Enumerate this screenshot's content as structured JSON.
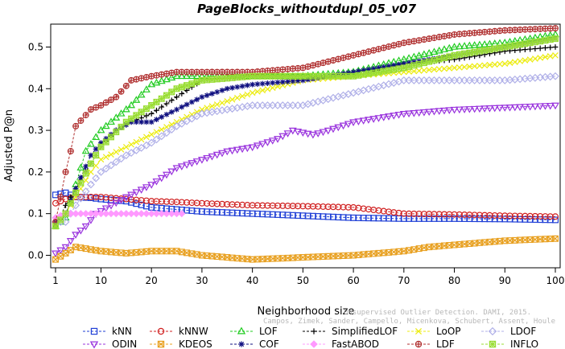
{
  "chart_data": {
    "type": "line",
    "title": "PageBlocks_withoutdupl_05_v07",
    "xlabel": "Neighborhood size",
    "ylabel": "Adjusted P@n",
    "xlim": [
      1,
      100
    ],
    "ylim": [
      -0.03,
      0.555
    ],
    "x_ticks": [
      1,
      10,
      20,
      30,
      40,
      50,
      60,
      70,
      80,
      90,
      100
    ],
    "y_ticks": [
      0.0,
      0.1,
      0.2,
      0.3,
      0.4,
      0.5
    ],
    "y_tick_labels": [
      "0.0",
      "0.1",
      "0.2",
      "0.3",
      "0.4",
      "0.5"
    ],
    "grid": false,
    "legend_position": "bottom",
    "watermark": [
      "Unsupervised Outlier Detection. DAMI, 2015.",
      "Campos, Zimek, Sander, Campello, Micenkova, Schubert, Assent, Houle"
    ],
    "series": [
      {
        "name": "kNN",
        "color": "#1f3fd6",
        "marker": "square",
        "points": [
          [
            1,
            0.145
          ],
          [
            3,
            0.15
          ],
          [
            5,
            0.14
          ],
          [
            8,
            0.138
          ],
          [
            10,
            0.135
          ],
          [
            15,
            0.13
          ],
          [
            20,
            0.115
          ],
          [
            25,
            0.11
          ],
          [
            30,
            0.105
          ],
          [
            40,
            0.1
          ],
          [
            50,
            0.095
          ],
          [
            60,
            0.09
          ],
          [
            70,
            0.088
          ],
          [
            80,
            0.088
          ],
          [
            90,
            0.087
          ],
          [
            100,
            0.085
          ]
        ]
      },
      {
        "name": "kNNW",
        "color": "#d02020",
        "marker": "circle",
        "points": [
          [
            1,
            0.125
          ],
          [
            3,
            0.135
          ],
          [
            5,
            0.14
          ],
          [
            10,
            0.14
          ],
          [
            15,
            0.135
          ],
          [
            20,
            0.13
          ],
          [
            25,
            0.128
          ],
          [
            30,
            0.125
          ],
          [
            40,
            0.12
          ],
          [
            50,
            0.118
          ],
          [
            60,
            0.115
          ],
          [
            70,
            0.1
          ],
          [
            80,
            0.098
          ],
          [
            90,
            0.095
          ],
          [
            100,
            0.093
          ]
        ]
      },
      {
        "name": "LOF",
        "color": "#22cc22",
        "marker": "triangle-up",
        "points": [
          [
            1,
            0.07
          ],
          [
            3,
            0.09
          ],
          [
            5,
            0.17
          ],
          [
            7,
            0.25
          ],
          [
            10,
            0.3
          ],
          [
            13,
            0.33
          ],
          [
            16,
            0.36
          ],
          [
            20,
            0.41
          ],
          [
            25,
            0.43
          ],
          [
            30,
            0.43
          ],
          [
            40,
            0.43
          ],
          [
            50,
            0.43
          ],
          [
            60,
            0.44
          ],
          [
            70,
            0.47
          ],
          [
            80,
            0.5
          ],
          [
            90,
            0.51
          ],
          [
            100,
            0.53
          ]
        ]
      },
      {
        "name": "SimplifiedLOF",
        "color": "#000000",
        "marker": "plus",
        "points": [
          [
            1,
            0.07
          ],
          [
            3,
            0.12
          ],
          [
            5,
            0.16
          ],
          [
            8,
            0.22
          ],
          [
            10,
            0.26
          ],
          [
            13,
            0.3
          ],
          [
            16,
            0.32
          ],
          [
            20,
            0.34
          ],
          [
            25,
            0.38
          ],
          [
            30,
            0.42
          ],
          [
            40,
            0.43
          ],
          [
            50,
            0.43
          ],
          [
            60,
            0.43
          ],
          [
            70,
            0.46
          ],
          [
            80,
            0.47
          ],
          [
            90,
            0.49
          ],
          [
            100,
            0.5
          ]
        ]
      },
      {
        "name": "LoOP",
        "color": "#ecec10",
        "marker": "x",
        "points": [
          [
            1,
            0.07
          ],
          [
            3,
            0.1
          ],
          [
            5,
            0.14
          ],
          [
            8,
            0.2
          ],
          [
            10,
            0.23
          ],
          [
            15,
            0.26
          ],
          [
            20,
            0.29
          ],
          [
            25,
            0.32
          ],
          [
            30,
            0.35
          ],
          [
            40,
            0.39
          ],
          [
            50,
            0.42
          ],
          [
            60,
            0.43
          ],
          [
            70,
            0.44
          ],
          [
            80,
            0.45
          ],
          [
            90,
            0.46
          ],
          [
            100,
            0.48
          ]
        ]
      },
      {
        "name": "LDOF",
        "color": "#b0b0e8",
        "marker": "diamond",
        "points": [
          [
            1,
            0.08
          ],
          [
            3,
            0.08
          ],
          [
            5,
            0.12
          ],
          [
            8,
            0.17
          ],
          [
            10,
            0.2
          ],
          [
            15,
            0.24
          ],
          [
            20,
            0.27
          ],
          [
            25,
            0.31
          ],
          [
            30,
            0.34
          ],
          [
            40,
            0.36
          ],
          [
            50,
            0.36
          ],
          [
            60,
            0.39
          ],
          [
            70,
            0.42
          ],
          [
            80,
            0.42
          ],
          [
            90,
            0.42
          ],
          [
            100,
            0.43
          ]
        ]
      },
      {
        "name": "ODIN",
        "color": "#9933dd",
        "marker": "triangle-down",
        "points": [
          [
            1,
            0.005
          ],
          [
            3,
            0.02
          ],
          [
            5,
            0.05
          ],
          [
            7,
            0.07
          ],
          [
            9,
            0.1
          ],
          [
            12,
            0.12
          ],
          [
            15,
            0.14
          ],
          [
            20,
            0.17
          ],
          [
            25,
            0.21
          ],
          [
            30,
            0.23
          ],
          [
            35,
            0.25
          ],
          [
            40,
            0.26
          ],
          [
            45,
            0.28
          ],
          [
            48,
            0.3
          ],
          [
            52,
            0.29
          ],
          [
            55,
            0.3
          ],
          [
            60,
            0.32
          ],
          [
            65,
            0.33
          ],
          [
            70,
            0.34
          ],
          [
            80,
            0.35
          ],
          [
            90,
            0.355
          ],
          [
            100,
            0.36
          ]
        ]
      },
      {
        "name": "KDEOS",
        "color": "#e8a020",
        "marker": "boxed-x",
        "points": [
          [
            1,
            -0.01
          ],
          [
            3,
            0.005
          ],
          [
            5,
            0.02
          ],
          [
            10,
            0.01
          ],
          [
            15,
            0.005
          ],
          [
            20,
            0.01
          ],
          [
            25,
            0.01
          ],
          [
            30,
            0.0
          ],
          [
            40,
            -0.01
          ],
          [
            50,
            -0.005
          ],
          [
            60,
            0.0
          ],
          [
            70,
            0.01
          ],
          [
            75,
            0.02
          ],
          [
            80,
            0.025
          ],
          [
            85,
            0.03
          ],
          [
            90,
            0.035
          ],
          [
            100,
            0.04
          ]
        ]
      },
      {
        "name": "COF",
        "color": "#101080",
        "marker": "star",
        "points": [
          [
            1,
            0.08
          ],
          [
            3,
            0.1
          ],
          [
            5,
            0.16
          ],
          [
            8,
            0.24
          ],
          [
            10,
            0.27
          ],
          [
            13,
            0.3
          ],
          [
            16,
            0.32
          ],
          [
            20,
            0.32
          ],
          [
            25,
            0.35
          ],
          [
            30,
            0.38
          ],
          [
            35,
            0.4
          ],
          [
            40,
            0.41
          ],
          [
            50,
            0.42
          ],
          [
            60,
            0.44
          ],
          [
            65,
            0.45
          ],
          [
            70,
            0.46
          ],
          [
            80,
            0.48
          ],
          [
            90,
            0.5
          ],
          [
            100,
            0.52
          ]
        ]
      },
      {
        "name": "FastABOD",
        "color": "#ff99ff",
        "marker": "diamond-filled",
        "points": [
          [
            1,
            0.09
          ],
          [
            3,
            0.1
          ],
          [
            5,
            0.1
          ],
          [
            7,
            0.1
          ],
          [
            10,
            0.1
          ],
          [
            13,
            0.1
          ],
          [
            16,
            0.1
          ],
          [
            20,
            0.1
          ],
          [
            23,
            0.1
          ],
          [
            26,
            0.1
          ]
        ]
      },
      {
        "name": "LDF",
        "color": "#b03030",
        "marker": "circle-plus",
        "points": [
          [
            1,
            0.08
          ],
          [
            3,
            0.2
          ],
          [
            4,
            0.25
          ],
          [
            5,
            0.31
          ],
          [
            8,
            0.35
          ],
          [
            10,
            0.36
          ],
          [
            13,
            0.38
          ],
          [
            16,
            0.42
          ],
          [
            20,
            0.43
          ],
          [
            25,
            0.44
          ],
          [
            30,
            0.44
          ],
          [
            40,
            0.44
          ],
          [
            50,
            0.45
          ],
          [
            60,
            0.48
          ],
          [
            70,
            0.51
          ],
          [
            80,
            0.53
          ],
          [
            90,
            0.54
          ],
          [
            100,
            0.545
          ]
        ]
      },
      {
        "name": "INFLO",
        "color": "#99dd33",
        "marker": "boxed-star",
        "points": [
          [
            1,
            0.07
          ],
          [
            3,
            0.1
          ],
          [
            5,
            0.15
          ],
          [
            8,
            0.22
          ],
          [
            10,
            0.26
          ],
          [
            15,
            0.32
          ],
          [
            20,
            0.36
          ],
          [
            25,
            0.4
          ],
          [
            30,
            0.42
          ],
          [
            40,
            0.43
          ],
          [
            50,
            0.43
          ],
          [
            60,
            0.43
          ],
          [
            70,
            0.45
          ],
          [
            80,
            0.48
          ],
          [
            90,
            0.5
          ],
          [
            100,
            0.52
          ]
        ]
      }
    ],
    "legend_order": [
      "kNN",
      "kNNW",
      "LOF",
      "SimplifiedLOF",
      "LoOP",
      "LDOF",
      "ODIN",
      "KDEOS",
      "COF",
      "FastABOD",
      "LDF",
      "INFLO"
    ]
  }
}
